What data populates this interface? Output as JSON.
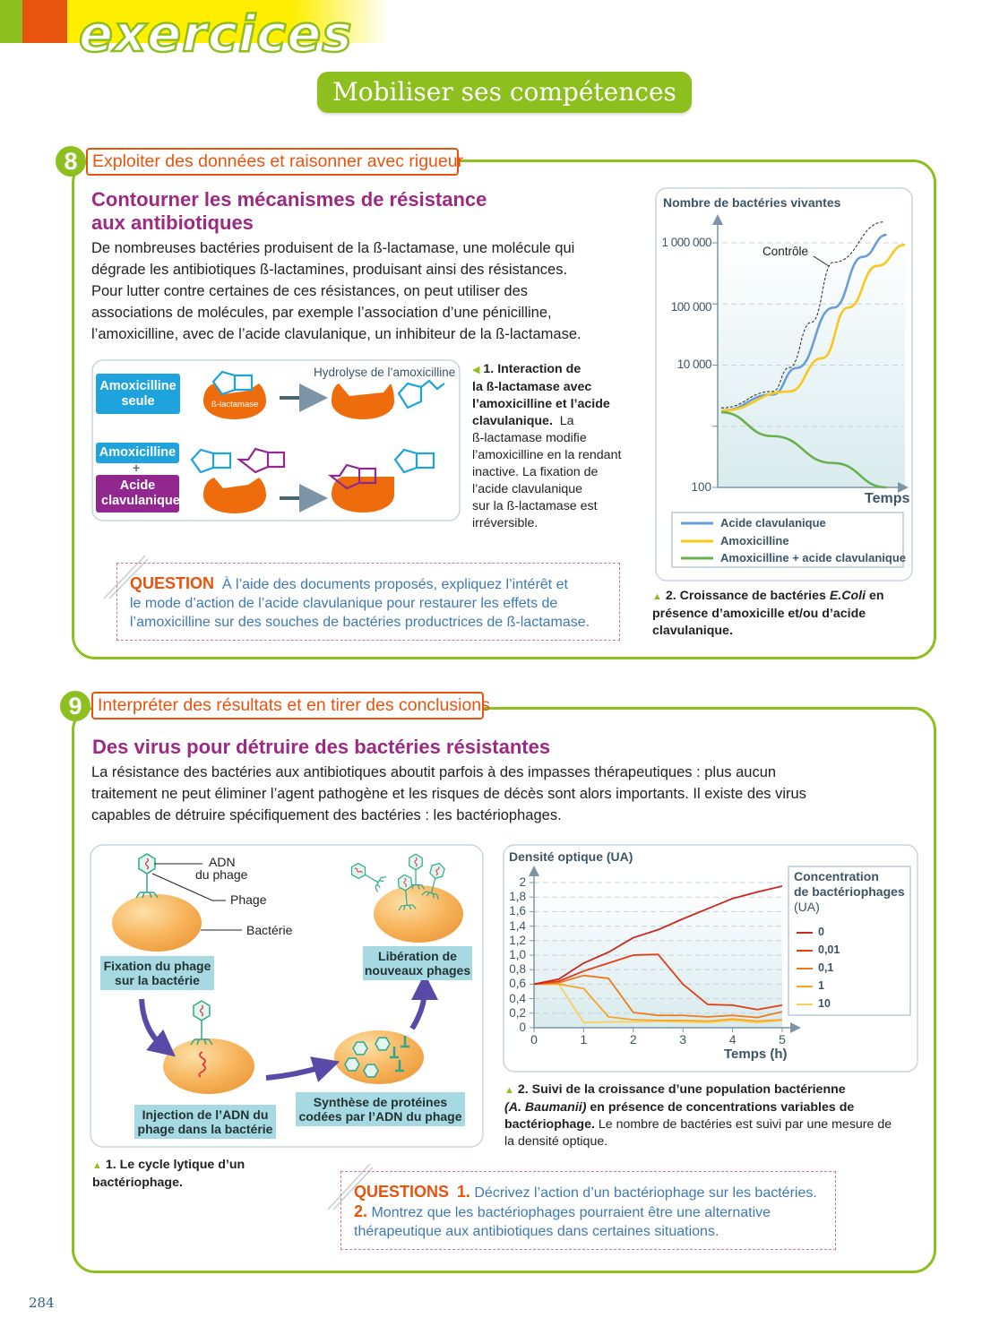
{
  "header": {
    "banner": "exercices",
    "subtitle": "Mobiliser ses compétences"
  },
  "colors": {
    "green": "#8dbf1f",
    "orange": "#e8540e",
    "purple": "#9b2a83",
    "question_blue": "#3e79b5",
    "amoxicilline_blue": "#1fa3dc",
    "clavulanique_purple": "#92278f"
  },
  "ex8": {
    "number": "8",
    "skill": "Exploiter des données et raisonner avec rigueur",
    "title_lines": [
      "Contourner les mécanismes de résistance",
      "aux antibiotiques"
    ],
    "body_lines": [
      "De nombreuses bactéries produisent de la ß-lactamase, une molécule qui",
      "dégrade les antibiotiques ß-lactamines, produisant ainsi des résistances.",
      "Pour lutter contre certaines de ces résistances, on peut utiliser des",
      "associations de molécules, par exemple l’association d’une pénicilline,",
      "l’amoxicilline, avec de l’acide clavulanique, un inhibiteur de la ß-lactamase."
    ],
    "diagram": {
      "box1": "Amoxicilline seule",
      "enzyme_label": "ß-lactamase",
      "hydrolysis": "Hydrolyse de l’amoxicilline",
      "box2": "Amoxicilline",
      "plus": "+",
      "box3": "Acide clavulanique"
    },
    "doc1_caption_bold_lines": [
      "1. Interaction de",
      "la ß-lactamase avec",
      "l’amoxicilline et l’acide",
      "clavulanique."
    ],
    "doc1_caption_lines": [
      "La",
      "ß-lactamase modifie",
      "l’amoxicilline en la rendant",
      "inactive. La fixation de",
      "l’acide clavulanique",
      "sur la ß-lactamase est",
      "irréversible."
    ],
    "doc2_caption_lines": [
      "2. Croissance de bactéries ",
      "E.Coli",
      " en",
      "présence d’amoxicille et/ou d’acide",
      "clavulanique."
    ],
    "question_tag": "QUESTION",
    "question_lines": [
      "À l’aide des documents proposés, expliquez l’intérêt et",
      "le mode d’action de l’acide clavulanique pour restaurer les effets de",
      "l’amoxicilline sur des souches de bactéries productrices de ß-lactamase."
    ]
  },
  "ex9": {
    "number": "9",
    "skill": "Interpréter des résultats et en tirer des conclusions",
    "title": "Des virus pour détruire des bactéries résistantes",
    "body_lines": [
      "La résistance des bactéries aux antibiotiques aboutit parfois à des impasses thérapeutiques : plus aucun",
      "traitement ne peut éliminer l’agent pathogène et les risques de décès sont alors importants. Il existe des virus",
      "capables de détruire spécifiquement des bactéries : les bactériophages."
    ],
    "diagram": {
      "adn_lines": [
        "ADN",
        "du phage"
      ],
      "phage": "Phage",
      "bacterie": "Bactérie",
      "step1_lines": [
        "Fixation du phage",
        "sur la bactérie"
      ],
      "step2_lines": [
        "Injection de l’ADN du",
        "phage dans la bactérie"
      ],
      "step3_lines": [
        "Synthèse de protéines",
        "codées par l’ADN du phage"
      ],
      "step4_lines": [
        "Libération de",
        "nouveaux phages"
      ]
    },
    "doc1_caption_lines": [
      "1. Le cycle lytique d’un",
      "bactériophage."
    ],
    "doc2_caption": {
      "bold1": "2. Suivi de la croissance d’une population bactérienne",
      "bold2_italic": "(A. Baumanii)",
      "bold2": " en présence de concentrations variables de",
      "bold3": "bactériophage.",
      "rest3": " Le nombre de bactéries est suivi par une mesure de",
      "rest4": "la densité optique."
    },
    "question_tag": "QUESTIONS",
    "q1_num": "1.",
    "q1": "Décrivez l’action d’un bactériophage sur les bactéries.",
    "q2_num": "2.",
    "q2_line1": "Montrez que les bactériophages pourraient être une alternative",
    "q2_line2": "thérapeutique aux antibiotiques dans certaines situations."
  },
  "page_number": "284",
  "chart_data": [
    {
      "type": "line",
      "ylabel": "Nombre de bactéries vivantes",
      "xlabel": "Temps",
      "yscale": "log",
      "ylim": [
        100,
        2000000
      ],
      "yticks": [
        100,
        1000,
        10000,
        100000,
        1000000
      ],
      "ytick_labels": [
        "100",
        "",
        "10 000",
        "100 000",
        "1 000 000"
      ],
      "grid": "dashed horizontal",
      "annotation": "Contrôle",
      "legend_position": "bottom",
      "series": [
        {
          "name": "Contrôle",
          "color": "#222222",
          "style": "dashed",
          "points": [
            [
              0,
              2000
            ],
            [
              2.8,
              3700
            ],
            [
              3.7,
              9100
            ],
            [
              4.9,
              50000
            ],
            [
              6.1,
              480000
            ],
            [
              8.9,
              2200000
            ]
          ]
        },
        {
          "name": "Acide clavulanique",
          "color": "#6a9ed8",
          "points": [
            [
              0,
              1800
            ],
            [
              2.8,
              3300
            ],
            [
              4.1,
              9000
            ],
            [
              6.1,
              87000
            ],
            [
              7.7,
              590000
            ],
            [
              9.0,
              1350000
            ]
          ]
        },
        {
          "name": "Amoxicilline",
          "color": "#f8c81c",
          "points": [
            [
              0,
              1800
            ],
            [
              3.7,
              3700
            ],
            [
              5.5,
              13000
            ],
            [
              6.9,
              87000
            ],
            [
              8.5,
              420000
            ],
            [
              10,
              930000
            ]
          ]
        },
        {
          "name": "Amoxicilline + acide clavulanique",
          "color": "#6ab04c",
          "points": [
            [
              0,
              1700
            ],
            [
              2.8,
              690
            ],
            [
              6.1,
              250
            ],
            [
              9.0,
              100
            ]
          ]
        }
      ]
    },
    {
      "type": "line",
      "ylabel": "Densité optique (UA)",
      "xlabel": "Temps (h)",
      "xlim": [
        0,
        5
      ],
      "ylim": [
        0,
        2
      ],
      "xticks": [
        "0",
        "1",
        "2",
        "3",
        "4",
        "5"
      ],
      "yticks": [
        "0",
        "0,2",
        "0,4",
        "0,6",
        "0,8",
        "1,0",
        "1,2",
        "1,4",
        "1,6",
        "1,8",
        "2"
      ],
      "grid": "dashed horizontal",
      "legend_title_lines": [
        "Concentration",
        "de bactériophages",
        "(UA)"
      ],
      "legend_position": "right",
      "x": [
        0,
        0.5,
        1,
        1.5,
        2,
        2.5,
        3,
        3.5,
        4,
        4.5,
        5
      ],
      "series": [
        {
          "name": "0",
          "color": "#c8281e",
          "values": [
            0.6,
            0.67,
            0.89,
            1.04,
            1.24,
            1.35,
            1.5,
            1.64,
            1.78,
            1.87,
            1.95
          ]
        },
        {
          "name": "0,01",
          "color": "#e63c14",
          "values": [
            0.6,
            0.64,
            0.78,
            0.89,
            1.0,
            1.01,
            0.6,
            0.32,
            0.31,
            0.25,
            0.31
          ]
        },
        {
          "name": "0,1",
          "color": "#ef7a1a",
          "values": [
            0.6,
            0.62,
            0.72,
            0.68,
            0.21,
            0.17,
            0.17,
            0.15,
            0.17,
            0.14,
            0.22
          ]
        },
        {
          "name": "1",
          "color": "#f5a623",
          "values": [
            0.6,
            0.6,
            0.54,
            0.15,
            0.11,
            0.1,
            0.1,
            0.09,
            0.12,
            0.09,
            0.11
          ]
        },
        {
          "name": "10",
          "color": "#fbd05a",
          "values": [
            0.6,
            0.6,
            0.07,
            0.08,
            0.08,
            0.09,
            0.08,
            0.07,
            0.1,
            0.07,
            0.1
          ]
        }
      ]
    }
  ]
}
